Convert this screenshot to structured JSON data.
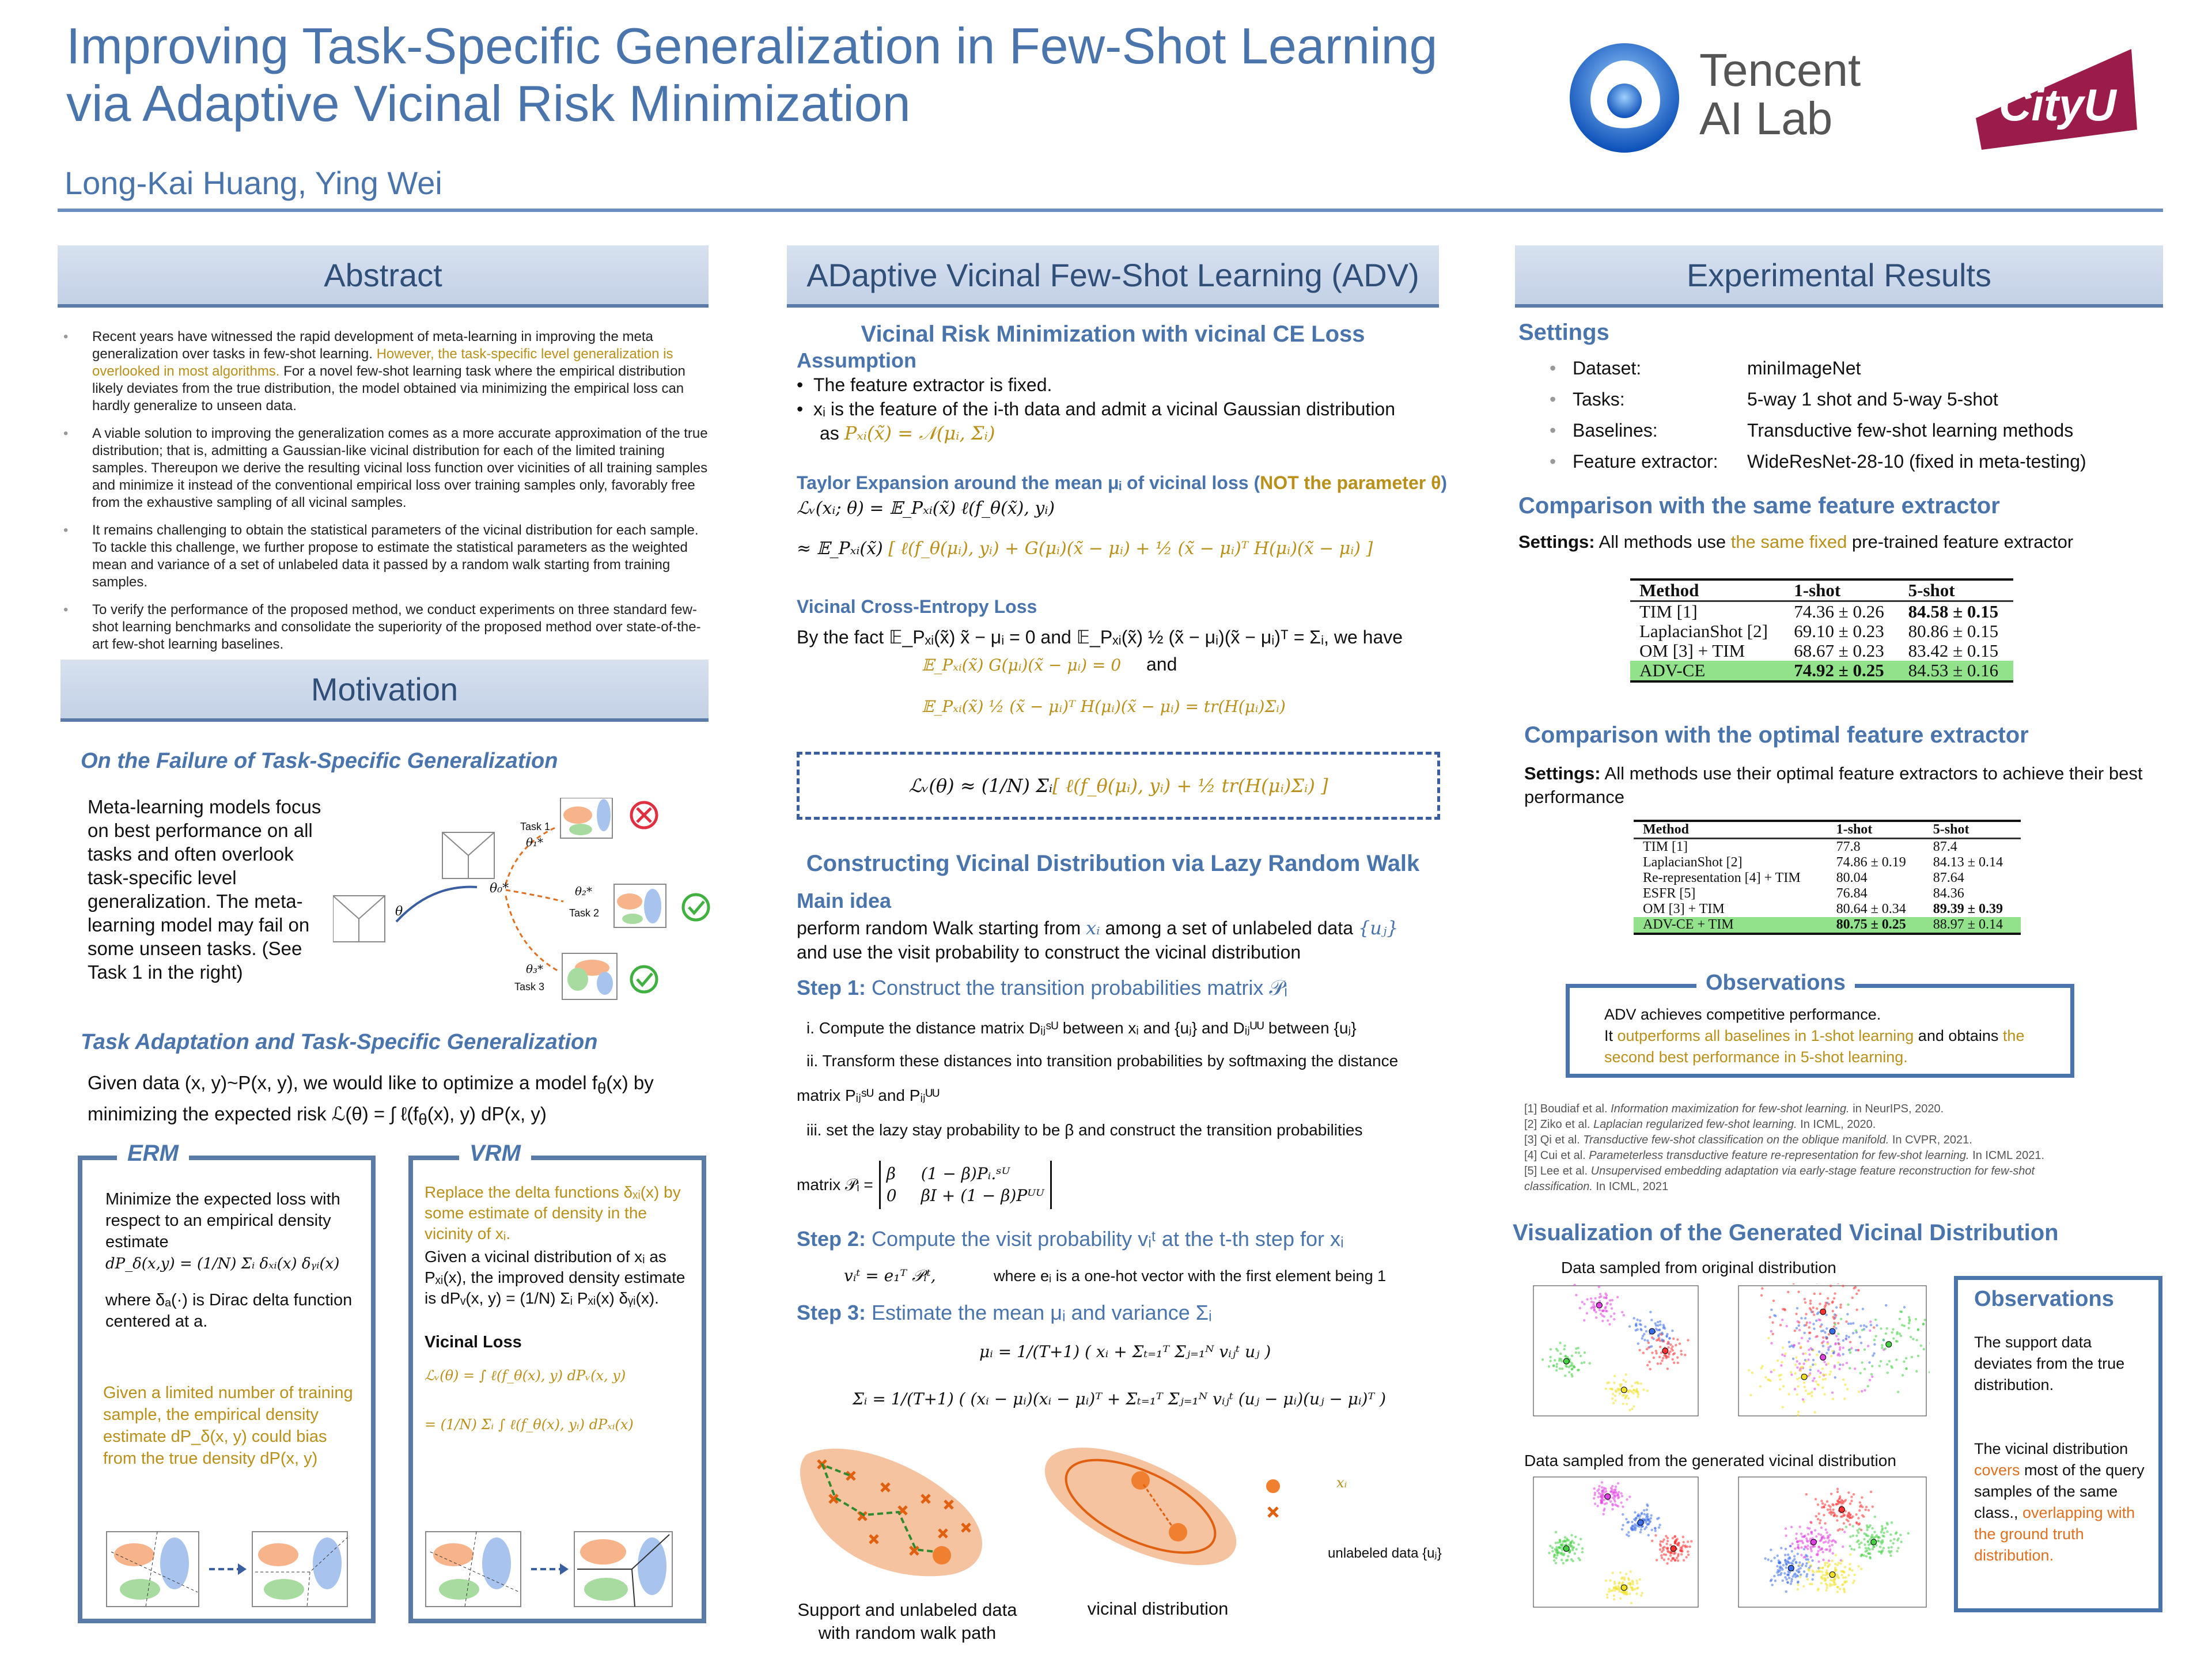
{
  "header": {
    "title_line1": "Improving Task-Specific Generalization in Few-Shot Learning",
    "title_line2": "via Adaptive Vicinal Risk Minimization",
    "authors": "Long-Kai Huang, Ying Wei",
    "logo_tencent_line1": "Tencent",
    "logo_tencent_line2": "AI Lab",
    "logo_cityu": "CityU"
  },
  "abstract": {
    "heading": "Abstract",
    "b1_pre": "Recent years have witnessed the rapid development of meta-learning in improving the meta generalization over tasks in few-shot learning. ",
    "b1_hl": "However, the task-specific level generalization is overlooked in most algorithms.",
    "b1_post": " For a novel few-shot learning task where the empirical distribution likely deviates from the true distribution, the model obtained via minimizing the empirical loss can hardly generalize to unseen data.",
    "b2": "A viable solution to improving the generalization comes as a more accurate approximation of the true distribution; that is, admitting a Gaussian-like vicinal distribution for each of the limited training samples. Thereupon we derive the resulting vicinal loss function over vicinities of all training samples and minimize it instead of the conventional empirical loss over training samples only, favorably free from the exhaustive sampling of all vicinal samples.",
    "b3": "It remains challenging to obtain the statistical parameters of the vicinal distribution for each sample. To tackle this challenge, we further propose to estimate the statistical parameters as the weighted mean and variance of a set of unlabeled data it passed by a random walk starting from training samples.",
    "b4": "To verify the performance of the proposed method, we conduct experiments on three standard few-shot learning benchmarks and consolidate the superiority of the proposed method over state-of-the-art few-shot learning baselines."
  },
  "motivation": {
    "heading": "Motivation",
    "sub1": "On the Failure of Task-Specific Generalization",
    "para1": "Meta-learning models focus on best performance on all tasks and often overlook task-specific level generalization. The meta-learning model may fail on some unseen tasks. (See Task 1 in the right)",
    "fig": {
      "task1": "Task 1",
      "task2": "Task 2",
      "task3": "Task 3",
      "theta": "θ",
      "theta0": "θ₀*",
      "theta1": "θ₁*",
      "theta2": "θ₂*",
      "theta3": "θ₃*"
    },
    "sub2": "Task Adaptation and Task-Specific Generalization",
    "para2_a": "Given data (x, y)~P(x, y), we would like to optimize a model f",
    "para2_b": "θ",
    "para2_c": "(x) by minimizing the expected risk  ℒ(θ) = ∫ ℓ(f",
    "para2_d": "(x), y) dP(x, y)",
    "erm": {
      "title": "ERM",
      "text": "Minimize the expected loss with respect to an empirical density estimate",
      "formula": "dP_δ(x,y) = (1/N) Σᵢ δₓᵢ(x) δᵧᵢ(x)",
      "where": "where δₐ(·) is Dirac delta function centered at a.",
      "bias": "Given a limited number of training sample, the empirical density estimate dP_δ(x, y) could bias from the true density dP(x, y)"
    },
    "vrm": {
      "title": "VRM",
      "replace": "Replace the delta functions δₓᵢ(x) by some estimate of density in the vicinity of xᵢ.",
      "given": "Given a vicinal distribution of xᵢ as Pₓᵢ(x), the improved density estimate is dPᵥ(x, y) = (1/N) Σᵢ Pₓᵢ(x) δᵧᵢ(x).",
      "loss_title": "Vicinal Loss",
      "loss1": "ℒᵥ(θ) = ∫ ℓ(f_θ(x), y) dPᵥ(x, y)",
      "loss2": "= (1/N) Σᵢ ∫ ℓ(f_θ(x), yᵢ) dPₓᵢ(x)"
    }
  },
  "adv": {
    "heading": "ADaptive Vicinal Few-Shot Learning (ADV)",
    "vrm_title": "Vicinal Risk Minimization with vicinal CE Loss",
    "assumption_title": "Assumption",
    "assumption_1": "The feature extractor is fixed.",
    "assumption_2": "xᵢ is the feature of the i-th data and admit a vicinal Gaussian distribution",
    "assumption_3a": "as ",
    "assumption_3b": "Pₓᵢ(x̃) = 𝒩(μᵢ, Σᵢ)",
    "taylor_title_a": "Taylor Expansion around the mean μᵢ of vicinal loss (",
    "taylor_title_b": "NOT the parameter θ",
    "taylor_title_c": ")",
    "taylor_1": "ℒᵥ(xᵢ; θ) = 𝔼_Pₓᵢ(x̃) ℓ(f_θ(x̃), yᵢ)",
    "taylor_2a": "≈ 𝔼_Pₓᵢ(x̃) ",
    "taylor_2b": "[ ℓ(f_θ(μᵢ), yᵢ) + G(μᵢ)(x̃ − μᵢ) + ½ (x̃ − μᵢ)ᵀ H(μᵢ)(x̃ − μᵢ) ]",
    "ce_title": "Vicinal Cross-Entropy Loss",
    "ce_fact": "By the fact 𝔼_Pₓᵢ(x̃) x̃ − μᵢ = 0 and 𝔼_Pₓᵢ(x̃) ½ (x̃ − μᵢ)(x̃ − μᵢ)ᵀ = Σᵢ, we have",
    "ce_1": "𝔼_Pₓᵢ(x̃) G(μᵢ)(x̃ − μᵢ) = 0",
    "ce_and": "and",
    "ce_2": "𝔼_Pₓᵢ(x̃) ½ (x̃ − μᵢ)ᵀ H(μᵢ)(x̃ − μᵢ) = tr(H(μᵢ)Σᵢ)",
    "boxed_a": "ℒᵥ(θ) ≈ (1/N) Σᵢ ",
    "boxed_b": "[ ℓ(f_θ(μᵢ), yᵢ) + ½ tr(H(μᵢ)Σᵢ) ]",
    "lazy_title": "Constructing Vicinal Distribution via Lazy Random Walk",
    "main_title": "Main idea",
    "main_1a": "perform random Walk starting from ",
    "main_1b": "xᵢ",
    "main_1c": " among a set of unlabeled data ",
    "main_1d": "{uⱼ}",
    "main_2": "and use the visit probability to construct the vicinal distribution",
    "step1_label": "Step 1:",
    "step1_text": "Construct the transition probabilities matrix 𝒫ᵢ",
    "step1_i": "i. Compute the distance matrix Dᵢⱼˢᵁ  between xᵢ and {uⱼ} and Dᵢⱼᵁᵁ between {uⱼ}",
    "step1_ii": "ii. Transform these distances into transition probabilities by softmaxing the distance",
    "step1_ii2": "matrix Pᵢⱼˢᵁ and Pᵢⱼᵁᵁ",
    "step1_iii": "iii. set the lazy stay probability to be β and construct the transition probabilities",
    "step1_matrix_label": "matrix 𝒫ᵢ =",
    "step1_m11": "β",
    "step1_m12": "(1 − β)Pᵢ.ˢᵁ",
    "step1_m21": "0",
    "step1_m22": "βI + (1 − β)Pᵁᵁ",
    "step2_label": "Step 2:",
    "step2_text": "Compute the visit probability vᵢᵗ at the t-th step for xᵢ",
    "step2_formula": "vᵢᵗ = e₁ᵀ 𝒫ᵢᵗ,",
    "step2_where": "where eᵢ is a one-hot vector with the first element being 1",
    "step3_label": "Step 3:",
    "step3_text": "Estimate the mean μᵢ and variance Σᵢ",
    "step3_mu": "μᵢ = 1/(T+1) ( xᵢ + Σₜ₌₁ᵀ Σⱼ₌₁ᴺ vᵢⱼᵗ uⱼ )",
    "step3_sigma": "Σᵢ = 1/(T+1) ( (xᵢ − μᵢ)(xᵢ − μᵢ)ᵀ + Σₜ₌₁ᵀ Σⱼ₌₁ᴺ vᵢⱼᵗ (uⱼ − μᵢ)(uⱼ − μᵢ)ᵀ )",
    "fig_caption1_a": "Support and unlabeled data",
    "fig_caption1_b": "with random walk path",
    "fig_caption2": "vicinal distribution",
    "legend_x": "xᵢ",
    "legend_u": "unlabeled data {uⱼ}"
  },
  "results": {
    "heading": "Experimental Results",
    "settings_title": "Settings",
    "settings": [
      {
        "label": "Dataset:",
        "value": "miniImageNet"
      },
      {
        "label": "Tasks:",
        "value": "5-way 1 shot and 5-way 5-shot"
      },
      {
        "label": "Baselines:",
        "value": "Transductive few-shot learning methods"
      },
      {
        "label": "Feature extractor:",
        "value": "WideResNet-28-10 (fixed in meta-testing)"
      }
    ],
    "same_title": "Comparison with the same feature extractor",
    "same_settings_b": "Settings:",
    "same_settings_a": " All methods use ",
    "same_settings_hl": "the same fixed",
    "same_settings_c": " pre-trained feature extractor",
    "table1": {
      "headers": [
        "Method",
        "1-shot",
        "5-shot"
      ],
      "rows": [
        [
          "TIM [1]",
          "74.36 ± 0.26",
          "84.58 ± 0.15"
        ],
        [
          "LaplacianShot [2]",
          "69.10 ± 0.23",
          "80.86 ± 0.15"
        ],
        [
          "OM [3] + TIM",
          "68.67 ± 0.23",
          "83.42 ± 0.15"
        ],
        [
          "ADV-CE",
          "74.92 ± 0.25",
          "84.53 ± 0.16"
        ]
      ]
    },
    "opt_title": "Comparison with the optimal feature extractor",
    "opt_settings_b": "Settings:",
    "opt_settings_a": " All methods use their optimal feature extractors to achieve their best performance",
    "table2": {
      "headers": [
        "Method",
        "1-shot",
        "5-shot"
      ],
      "rows": [
        [
          "TIM [1]",
          "77.8",
          "87.4"
        ],
        [
          "LaplacianShot [2]",
          "74.86 ± 0.19",
          "84.13 ± 0.14"
        ],
        [
          "Re-representation [4] + TIM",
          "80.04",
          "87.64"
        ],
        [
          "ESFR [5]",
          "76.84",
          "84.36"
        ],
        [
          "OM [3] + TIM",
          "80.64 ± 0.34",
          "89.39 ± 0.39"
        ],
        [
          "ADV-CE + TIM",
          "80.75 ± 0.25",
          "88.97 ± 0.14"
        ]
      ]
    },
    "obs1": {
      "title": "Observations",
      "line1": "ADV achieves competitive performance.",
      "line2_a": " It ",
      "line2_hl1": "outperforms all baselines in 1-shot learning",
      "line2_b": " and obtains ",
      "line2_hl2": "the second best performance in 5-shot learning."
    },
    "refs": [
      {
        "pre": "[1] Boudiaf et al. ",
        "it": "Information maximization for few-shot learning.",
        "post": " in NeurIPS, 2020."
      },
      {
        "pre": "[2] Ziko et al. ",
        "it": "Laplacian regularized few-shot learning.",
        "post": " In ICML, 2020."
      },
      {
        "pre": "[3] Qi et al. ",
        "it": "Transductive few-shot classification on the oblique manifold.",
        "post": "  In CVPR,  2021."
      },
      {
        "pre": "[4] Cui et al. ",
        "it": "Parameterless transductive feature re-representation for few-shot learning.",
        "post": " In ICML 2021."
      },
      {
        "pre": "[5] Lee et al. ",
        "it": "Unsupervised embedding adaptation via early-stage feature reconstruction for few-shot classification.",
        "post": " In ICML, 2021"
      }
    ],
    "vis_title": "Visualization of the Generated Vicinal Distribution",
    "vis_orig": "Data sampled from  original distribution",
    "vis_gen": "Data sampled from the generated vicinal distribution",
    "obs2": {
      "title": "Observations",
      "p1": "The support data deviates from the true distribution.",
      "p2_a": "The vicinal distribution ",
      "p2_hl1": "covers",
      "p2_b": " most of the query samples of the same class., ",
      "p2_hl2": "overlapping with the ground truth distribution."
    },
    "class_colors": [
      "#e040e0",
      "#3a6ee8",
      "#ff3030",
      "#40d040",
      "#f0e020"
    ]
  },
  "colors": {
    "accent": "#4a74ac",
    "gold": "#b8901a",
    "highlight": "#92e28c",
    "orange": "#f07a20"
  }
}
